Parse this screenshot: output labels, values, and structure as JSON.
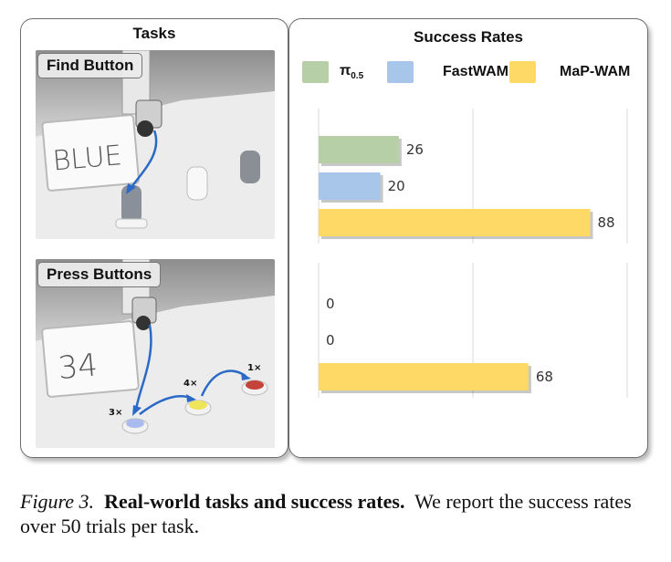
{
  "tasks_panel": {
    "title": "Tasks",
    "tasks": [
      {
        "label": "Find Button",
        "whiteboard_text": "BLUE"
      },
      {
        "label": "Press Buttons",
        "whiteboard_text": "34",
        "press_counts": [
          "3×",
          "4×",
          "1×"
        ]
      }
    ]
  },
  "rates_panel": {
    "title": "Success Rates"
  },
  "colors": {
    "pi05": "#b7cfa6",
    "fastwam": "#a8c6ea",
    "mapwam": "#ffd965"
  },
  "chart_data": {
    "type": "bar",
    "orientation": "horizontal",
    "title": "Success Rates",
    "xlim": [
      0,
      100
    ],
    "grid": true,
    "legend_position": "top",
    "series_names": [
      "π0.5",
      "FastWAM",
      "MaP-WAM"
    ],
    "groups": [
      {
        "task": "Find Button",
        "values": [
          26,
          20,
          88
        ]
      },
      {
        "task": "Press Buttons",
        "values": [
          0,
          0,
          68
        ]
      }
    ]
  },
  "legend": [
    {
      "name_main": "π",
      "name_sub": "0.5",
      "color": "#b7cfa6"
    },
    {
      "name_main": "FastWAM",
      "name_sub": "",
      "color": "#a8c6ea"
    },
    {
      "name_main": "MaP-WAM",
      "name_sub": "",
      "color": "#ffd965"
    }
  ],
  "caption": {
    "figure_label": "Figure 3.",
    "title": "Real-world tasks and success rates.",
    "text": "We report the success rates over 50 trials per task."
  }
}
